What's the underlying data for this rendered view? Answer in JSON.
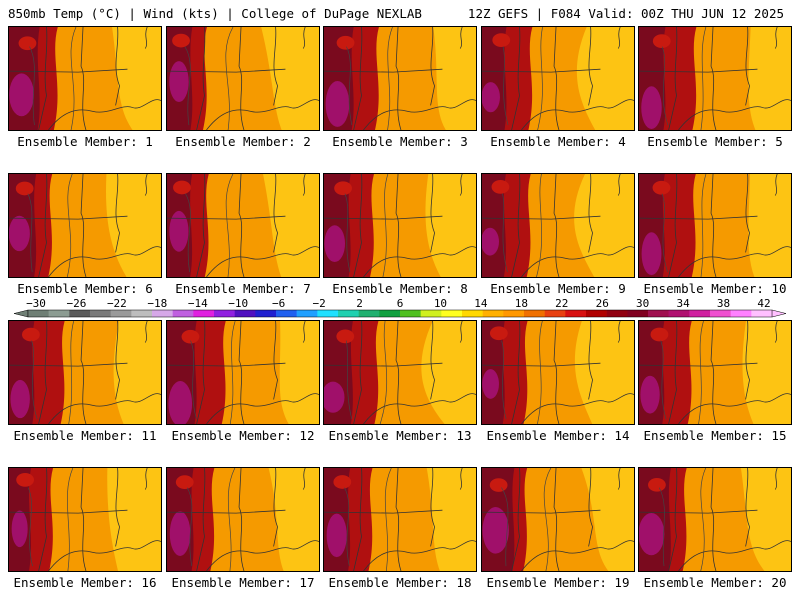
{
  "header": {
    "left": "850mb Temp (°C) | Wind (kts) | College of DuPage NEXLAB",
    "right": "12Z GEFS | F084 Valid: 00Z THU JUN 12 2025"
  },
  "panels": [
    {
      "label": "Ensemble Member: 1"
    },
    {
      "label": "Ensemble Member: 2"
    },
    {
      "label": "Ensemble Member: 3"
    },
    {
      "label": "Ensemble Member: 4"
    },
    {
      "label": "Ensemble Member: 5"
    },
    {
      "label": "Ensemble Member: 6"
    },
    {
      "label": "Ensemble Member: 7"
    },
    {
      "label": "Ensemble Member: 8"
    },
    {
      "label": "Ensemble Member: 9"
    },
    {
      "label": "Ensemble Member: 10"
    },
    {
      "label": "Ensemble Member: 11"
    },
    {
      "label": "Ensemble Member: 12"
    },
    {
      "label": "Ensemble Member: 13"
    },
    {
      "label": "Ensemble Member: 14"
    },
    {
      "label": "Ensemble Member: 15"
    },
    {
      "label": "Ensemble Member: 16"
    },
    {
      "label": "Ensemble Member: 17"
    },
    {
      "label": "Ensemble Member: 18"
    },
    {
      "label": "Ensemble Member: 19"
    },
    {
      "label": "Ensemble Member: 20"
    }
  ],
  "colorbar": {
    "tick_labels": [
      "−30",
      "−26",
      "−22",
      "−18",
      "−14",
      "−10",
      "−6",
      "−2",
      "2",
      "6",
      "10",
      "14",
      "18",
      "22",
      "26",
      "30",
      "34",
      "38",
      "42"
    ],
    "colors": [
      "#6f7f75",
      "#8c9c92",
      "#5a5a5a",
      "#7a7a7a",
      "#9a9a9a",
      "#bdbdbd",
      "#d6a8e8",
      "#c060e0",
      "#e020e0",
      "#9020e0",
      "#5010c0",
      "#2020d0",
      "#2060f0",
      "#20a0ff",
      "#20e0ff",
      "#20d0b0",
      "#20b070",
      "#10a040",
      "#50c020",
      "#d0f020",
      "#ffff20",
      "#ffd800",
      "#ffb000",
      "#ff9800",
      "#f07000",
      "#e84010",
      "#d81010",
      "#b00000",
      "#900010",
      "#800020",
      "#a01050",
      "#b01070",
      "#d020a0",
      "#f050d0",
      "#ff80ff",
      "#ffc0ff"
    ]
  },
  "colors": {
    "warm_base": "#f59a00",
    "light_yellow": "#ffd21a",
    "deep_red": "#b01010",
    "maroon": "#7a0a1e",
    "magenta": "#a0106a",
    "contour": "#333333"
  }
}
